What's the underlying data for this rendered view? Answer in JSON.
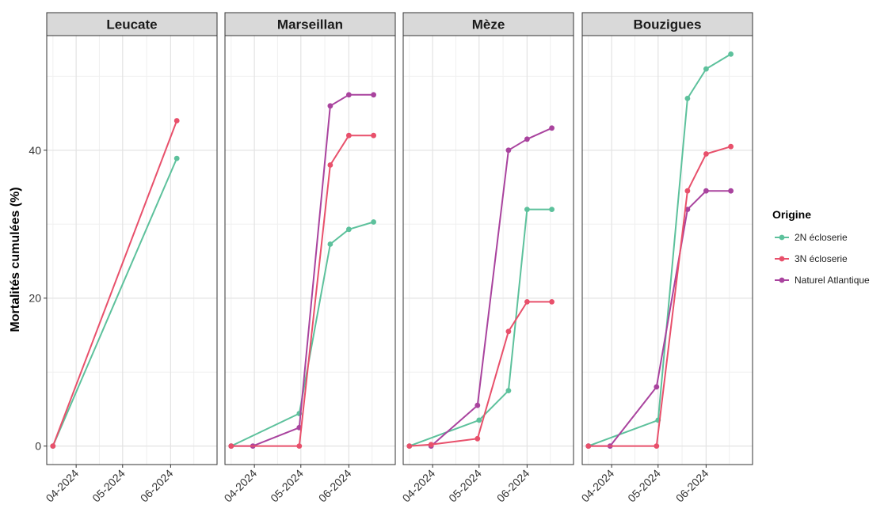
{
  "chart_data": {
    "type": "line",
    "ylabel": "Mortalités cumulées (%)",
    "xlabel": "",
    "y_ticks": [
      "0",
      "20",
      "40"
    ],
    "ylim": [
      -2.5,
      55.5
    ],
    "xlim": [
      "2024-03-13",
      "2024-07-01"
    ],
    "x_ticks": [
      {
        "date": "2024-04-01",
        "label": "04-2024"
      },
      {
        "date": "2024-05-01",
        "label": "05-2024"
      },
      {
        "date": "2024-06-01",
        "label": "06-2024"
      }
    ],
    "grid": true,
    "legend": {
      "title": "Origine",
      "position": "right"
    },
    "series_colors": {
      "2N écloserie": "#5dc19c",
      "3N écloserie": "#e8506b",
      "Naturel Atlantique": "#a9439e"
    },
    "panels": [
      {
        "name": "Leucate",
        "series": [
          {
            "name": "2N écloserie",
            "points": [
              [
                "2024-03-17",
                0
              ],
              [
                "2024-06-05",
                38.9
              ]
            ]
          },
          {
            "name": "3N écloserie",
            "points": [
              [
                "2024-03-17",
                0
              ],
              [
                "2024-06-05",
                44
              ]
            ]
          }
        ]
      },
      {
        "name": "Marseillan",
        "series": [
          {
            "name": "2N écloserie",
            "points": [
              [
                "2024-03-17",
                0
              ],
              [
                "2024-04-30",
                4.4
              ],
              [
                "2024-05-20",
                27.3
              ],
              [
                "2024-06-01",
                29.3
              ],
              [
                "2024-06-17",
                30.3
              ]
            ]
          },
          {
            "name": "3N écloserie",
            "points": [
              [
                "2024-03-17",
                0
              ],
              [
                "2024-04-30",
                0
              ],
              [
                "2024-05-20",
                38
              ],
              [
                "2024-06-01",
                42
              ],
              [
                "2024-06-17",
                42
              ]
            ]
          },
          {
            "name": "Naturel Atlantique",
            "points": [
              [
                "2024-03-17",
                0
              ],
              [
                "2024-03-31",
                0
              ],
              [
                "2024-04-30",
                2.5
              ],
              [
                "2024-05-20",
                46
              ],
              [
                "2024-06-01",
                47.5
              ],
              [
                "2024-06-17",
                47.5
              ]
            ]
          }
        ]
      },
      {
        "name": "Mèze",
        "series": [
          {
            "name": "2N écloserie",
            "points": [
              [
                "2024-03-17",
                0
              ],
              [
                "2024-05-01",
                3.5
              ],
              [
                "2024-05-20",
                7.5
              ],
              [
                "2024-06-01",
                32
              ],
              [
                "2024-06-17",
                32
              ]
            ]
          },
          {
            "name": "3N écloserie",
            "points": [
              [
                "2024-03-17",
                0
              ],
              [
                "2024-03-31",
                0.2
              ],
              [
                "2024-04-30",
                1
              ],
              [
                "2024-05-20",
                15.5
              ],
              [
                "2024-06-01",
                19.5
              ],
              [
                "2024-06-17",
                19.5
              ]
            ]
          },
          {
            "name": "Naturel Atlantique",
            "points": [
              [
                "2024-03-31",
                0
              ],
              [
                "2024-04-30",
                5.5
              ],
              [
                "2024-05-20",
                40
              ],
              [
                "2024-06-01",
                41.5
              ],
              [
                "2024-06-17",
                43
              ]
            ]
          }
        ]
      },
      {
        "name": "Bouzigues",
        "series": [
          {
            "name": "2N écloserie",
            "points": [
              [
                "2024-03-17",
                0
              ],
              [
                "2024-05-01",
                3.5
              ],
              [
                "2024-05-20",
                47
              ],
              [
                "2024-06-01",
                51
              ],
              [
                "2024-06-17",
                53
              ]
            ]
          },
          {
            "name": "3N écloserie",
            "points": [
              [
                "2024-03-17",
                0
              ],
              [
                "2024-04-30",
                0
              ],
              [
                "2024-05-20",
                34.5
              ],
              [
                "2024-06-01",
                39.5
              ],
              [
                "2024-06-17",
                40.5
              ]
            ]
          },
          {
            "name": "Naturel Atlantique",
            "points": [
              [
                "2024-03-17",
                0
              ],
              [
                "2024-03-31",
                0
              ],
              [
                "2024-04-30",
                8
              ],
              [
                "2024-05-20",
                32
              ],
              [
                "2024-06-01",
                34.5
              ],
              [
                "2024-06-17",
                34.5
              ]
            ]
          }
        ]
      }
    ]
  }
}
